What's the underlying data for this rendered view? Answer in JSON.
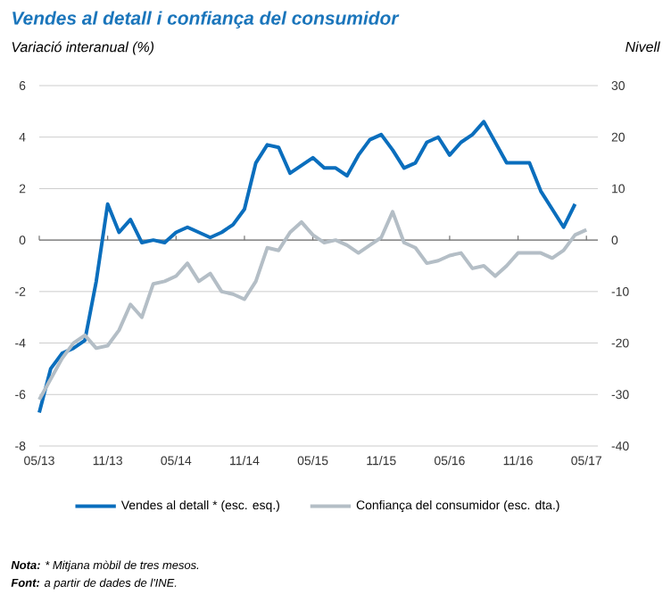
{
  "chart_data": {
    "type": "line",
    "title": "Vendes al detall i confiança del consumidor",
    "ylabel": "Variació interanual (%)",
    "y2label": "Nivell",
    "x": [
      "2013-05",
      "2013-06",
      "2013-07",
      "2013-08",
      "2013-09",
      "2013-10",
      "2013-11",
      "2013-12",
      "2014-01",
      "2014-02",
      "2014-03",
      "2014-04",
      "2014-05",
      "2014-06",
      "2014-07",
      "2014-08",
      "2014-09",
      "2014-10",
      "2014-11",
      "2014-12",
      "2015-01",
      "2015-02",
      "2015-03",
      "2015-04",
      "2015-05",
      "2015-06",
      "2015-07",
      "2015-08",
      "2015-09",
      "2015-10",
      "2015-11",
      "2015-12",
      "2016-01",
      "2016-02",
      "2016-03",
      "2016-04",
      "2016-05",
      "2016-06",
      "2016-07",
      "2016-08",
      "2016-09",
      "2016-10",
      "2016-11",
      "2016-12",
      "2017-01",
      "2017-02",
      "2017-03",
      "2017-04",
      "2017-05"
    ],
    "series": [
      {
        "name": "Vendes al detall * (esc. esq.)",
        "color": "#0a6ebd",
        "values": [
          -6.7,
          -5.0,
          -4.4,
          -4.2,
          -3.9,
          -1.6,
          1.4,
          0.3,
          0.8,
          -0.1,
          0,
          -0.1,
          0.3,
          0.5,
          0.3,
          0.1,
          0.3,
          0.6,
          1.2,
          3.0,
          3.7,
          3.6,
          2.6,
          2.9,
          3.2,
          2.8,
          2.8,
          2.5,
          3.3,
          3.9,
          4.1,
          3.5,
          2.8,
          3.0,
          3.8,
          4.0,
          3.3,
          3.8,
          4.1,
          4.6,
          3.8,
          3.0,
          3.0,
          3.0,
          1.9,
          1.2,
          0.5,
          1.4,
          null
        ]
      },
      {
        "name": "Confiança del consumidor (esc. dta.)",
        "color": "#b4bec6",
        "axis": "y2",
        "values": [
          -31,
          -27,
          -23,
          -20,
          -18.5,
          -21,
          -20.5,
          -17.5,
          -12.5,
          -15,
          -8.5,
          -8,
          -7,
          -4.5,
          -8,
          -6.5,
          -10,
          -10.5,
          -11.5,
          -8,
          -1.5,
          -2,
          1.5,
          3.5,
          1,
          -0.5,
          0,
          -1,
          -2.5,
          -1,
          0.5,
          5.5,
          -0.5,
          -1.5,
          -4.5,
          -4,
          -3,
          -2.5,
          -5.5,
          -5,
          -7,
          -5,
          -2.5,
          -2.5,
          -2.5,
          -3.5,
          -2,
          1,
          2
        ]
      }
    ],
    "xlim": [
      "2013-05",
      "2017-06"
    ],
    "xticks": [
      {
        "value": "2013-05",
        "label": "05/13"
      },
      {
        "value": "2013-11",
        "label": "11/13"
      },
      {
        "value": "2014-05",
        "label": "05/14"
      },
      {
        "value": "2014-11",
        "label": "11/14"
      },
      {
        "value": "2015-05",
        "label": "05/15"
      },
      {
        "value": "2015-11",
        "label": "11/15"
      },
      {
        "value": "2016-05",
        "label": "05/16"
      },
      {
        "value": "2016-11",
        "label": "11/16"
      },
      {
        "value": "2017-05",
        "label": "05/17"
      }
    ],
    "ylim": [
      -8,
      6
    ],
    "yticks": [
      -8,
      -6,
      -4,
      -2,
      0,
      2,
      4,
      6
    ],
    "y2lim": [
      -40,
      30
    ],
    "y2ticks": [
      -40,
      -30,
      -20,
      -10,
      0,
      10,
      20,
      30
    ],
    "grid": "y",
    "legend": "bottom",
    "line_style": "solid",
    "marker": "none",
    "annotations": [
      "**Nota:** * Mitjana mòbil de tres mesos.",
      "**Font:** a partir de dades de l'INE."
    ]
  }
}
